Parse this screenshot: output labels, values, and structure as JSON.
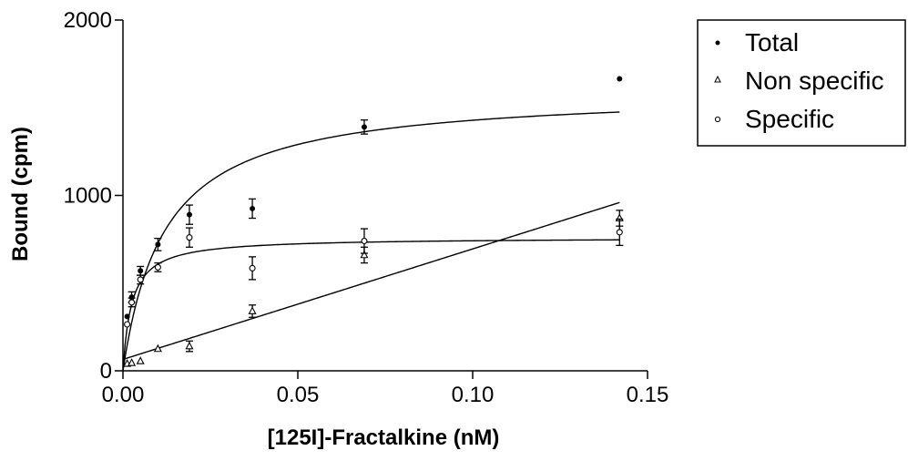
{
  "chart_data": {
    "type": "scatter",
    "xlabel": "[125I]-Fractalkine (nM)",
    "ylabel": "Bound (cpm)",
    "xlim": [
      0,
      0.15
    ],
    "ylim": [
      0,
      2000
    ],
    "x_ticks": [
      0,
      0.05,
      0.1,
      0.15
    ],
    "x_tick_labels": [
      "0.00",
      "0.05",
      "0.10",
      "0.15"
    ],
    "y_ticks": [
      0,
      1000,
      2000
    ],
    "y_tick_labels": [
      "0",
      "1000",
      "2000"
    ],
    "grid": false,
    "legend_position": "top-right outside",
    "series": [
      {
        "name": "Total",
        "marker": "filled-circle",
        "x": [
          0.0012,
          0.0025,
          0.005,
          0.01,
          0.019,
          0.037,
          0.069,
          0.142
        ],
        "y": [
          310,
          420,
          570,
          720,
          890,
          925,
          1390,
          1665
        ],
        "err": [
          0,
          30,
          25,
          35,
          55,
          55,
          40,
          0
        ]
      },
      {
        "name": "Non specific",
        "marker": "open-triangle",
        "x": [
          0.0012,
          0.0025,
          0.005,
          0.01,
          0.019,
          0.037,
          0.069,
          0.142
        ],
        "y": [
          40,
          45,
          55,
          125,
          140,
          340,
          660,
          870
        ],
        "err": [
          0,
          0,
          0,
          0,
          30,
          35,
          45,
          45
        ]
      },
      {
        "name": "Specific",
        "marker": "open-circle",
        "x": [
          0.0012,
          0.0025,
          0.005,
          0.01,
          0.019,
          0.037,
          0.069,
          0.142
        ],
        "y": [
          265,
          390,
          520,
          590,
          760,
          585,
          740,
          790
        ],
        "err": [
          0,
          25,
          25,
          25,
          55,
          65,
          70,
          75
        ]
      }
    ],
    "fits": [
      {
        "series": "Total",
        "model": "one-site + nonspecific",
        "Bmax": 1600,
        "Kd": 0.012,
        "NS_slope": 0,
        "NS_intercept": 0
      },
      {
        "series": "Non specific",
        "model": "linear",
        "slope": 6300,
        "intercept": 65
      },
      {
        "series": "Specific",
        "model": "one-site hyperbola",
        "Bmax": 760,
        "Kd": 0.0025
      }
    ],
    "colors": {
      "ink": "#000000",
      "background": "#ffffff"
    }
  }
}
